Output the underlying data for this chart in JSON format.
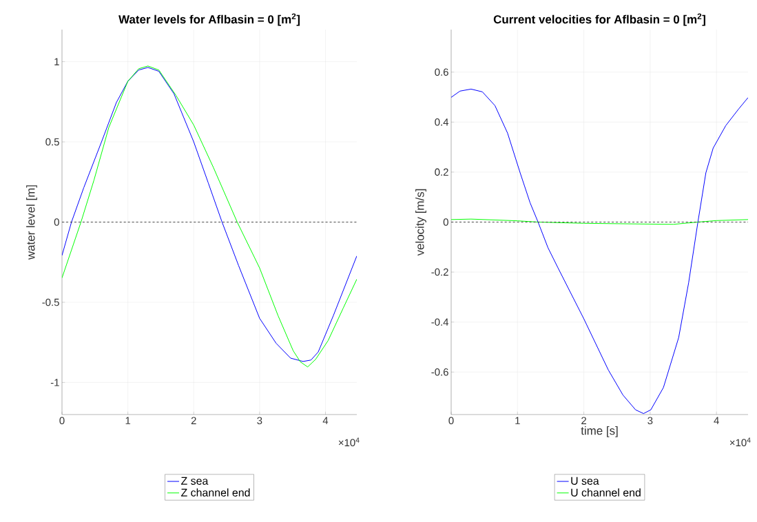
{
  "chart_data": [
    {
      "type": "line",
      "title": "Water levels for Aflbasin = 0 [m$^{2}$]",
      "ylabel": "water level [m]",
      "series": [
        {
          "name": "Z sea",
          "color": "#0000ff",
          "x": [
            0,
            0.144,
            0.33,
            0.6,
            0.825,
            1.0,
            1.165,
            1.305,
            1.47,
            1.7,
            2.0,
            2.22,
            2.43,
            2.68,
            3.0,
            3.25,
            3.47,
            3.66,
            3.78,
            3.89,
            4.12,
            4.476
          ],
          "values": [
            -0.208,
            0,
            0.214,
            0.5,
            0.745,
            0.878,
            0.948,
            0.964,
            0.94,
            0.8,
            0.5,
            0.245,
            0,
            -0.27,
            -0.6,
            -0.755,
            -0.848,
            -0.869,
            -0.86,
            -0.81,
            -0.583,
            -0.211
          ]
        },
        {
          "name": "Z channel end",
          "color": "#00ff00",
          "x": [
            0,
            0.288,
            0.485,
            0.71,
            1.0,
            1.165,
            1.305,
            1.47,
            1.73,
            2.0,
            2.3,
            2.66,
            3.0,
            3.28,
            3.51,
            3.62,
            3.73,
            3.85,
            4.04,
            4.27,
            4.476
          ],
          "values": [
            -0.348,
            0,
            0.261,
            0.589,
            0.878,
            0.956,
            0.973,
            0.948,
            0.79,
            0.605,
            0.339,
            0,
            -0.286,
            -0.583,
            -0.802,
            -0.872,
            -0.903,
            -0.856,
            -0.739,
            -0.536,
            -0.356
          ]
        }
      ],
      "xlim": [
        0,
        4.476
      ],
      "ylim": [
        -1.2,
        1.2
      ],
      "xticks": [
        0,
        1,
        2,
        3,
        4
      ],
      "yticks": [
        -1,
        -0.5,
        0,
        0.5,
        1
      ],
      "grid": true,
      "legend": "bottom",
      "line_style": "solid",
      "ref_lines": [
        {
          "axis": "y",
          "value": 0,
          "color": "#333333",
          "line_style": "dashed"
        }
      ],
      "annotations": [
        "×10$^{4}$"
      ]
    },
    {
      "type": "line",
      "title": "Current velocities for Aflbasin = 0 [m$^{2}$]",
      "xlabel": "time [s]",
      "ylabel": "velocity [m/s]",
      "series": [
        {
          "name": "U sea",
          "color": "#0000ff",
          "x": [
            0,
            0.133,
            0.3,
            0.47,
            0.66,
            0.85,
            1.04,
            1.19,
            1.31,
            1.46,
            1.61,
            2.0,
            2.37,
            2.59,
            2.78,
            2.9,
            3.01,
            3.2,
            3.43,
            3.58,
            3.72,
            3.84,
            3.95,
            4.14,
            4.33,
            4.476
          ],
          "values": [
            0.499,
            0.524,
            0.532,
            0.521,
            0.466,
            0.356,
            0.197,
            0.077,
            0,
            -0.103,
            -0.183,
            -0.387,
            -0.592,
            -0.692,
            -0.751,
            -0.766,
            -0.751,
            -0.662,
            -0.462,
            -0.243,
            0,
            0.197,
            0.296,
            0.386,
            0.451,
            0.498
          ]
        },
        {
          "name": "U channel end",
          "color": "#00ff00",
          "x": [
            0,
            0.3,
            1.0,
            1.31,
            2.0,
            3.0,
            3.35,
            3.72,
            4.0,
            4.476
          ],
          "values": [
            0.01,
            0.012,
            0.005,
            0,
            -0.005,
            -0.008,
            -0.009,
            0,
            0.006,
            0.01
          ]
        }
      ],
      "xlim": [
        0,
        4.476
      ],
      "ylim": [
        -0.77,
        0.77
      ],
      "xticks": [
        0,
        1,
        2,
        3,
        4
      ],
      "yticks": [
        -0.6,
        -0.4,
        -0.2,
        0,
        0.2,
        0.4,
        0.6
      ],
      "grid": true,
      "legend": "bottom",
      "line_style": "solid",
      "ref_lines": [
        {
          "axis": "y",
          "value": 0,
          "color": "#333333",
          "line_style": "dashed"
        }
      ],
      "annotations": [
        "×10$^{4}$"
      ]
    }
  ]
}
